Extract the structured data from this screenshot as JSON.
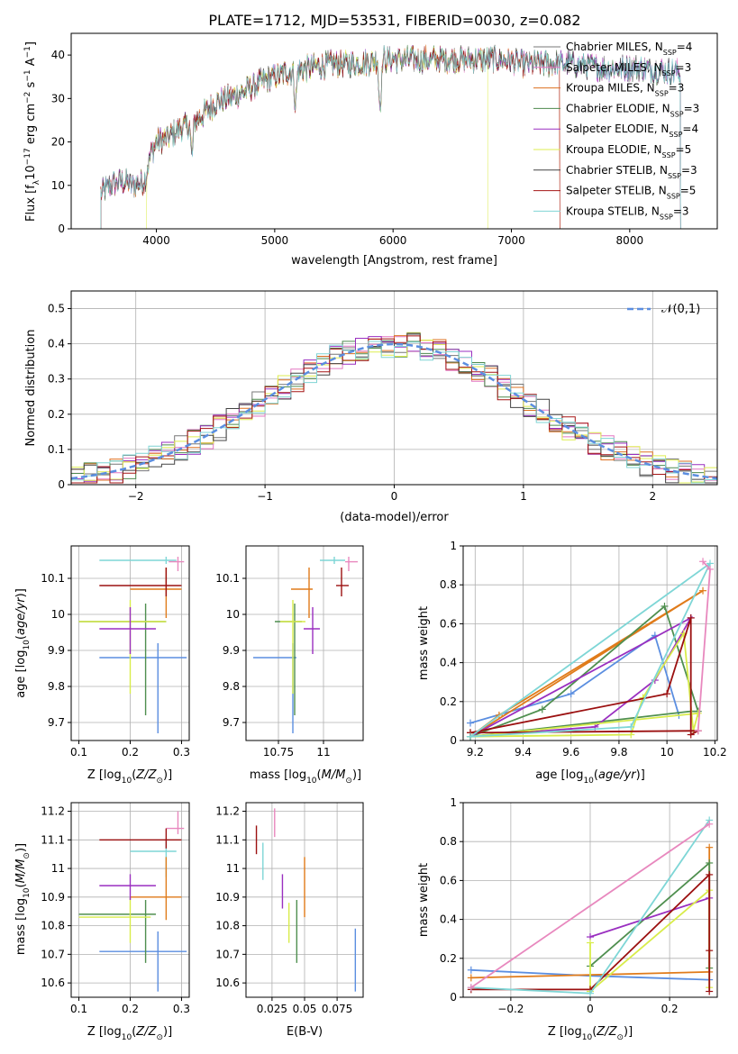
{
  "figure": {
    "title": "PLATE=1712, MJD=53531, FIBERID=0030, z=0.082"
  },
  "colors": {
    "series": [
      "#777777",
      "#e377c2",
      "#dd7020",
      "#4e8a4e",
      "#9a2fc0",
      "#dded50",
      "#444444",
      "#a51515",
      "#7fd4d4"
    ],
    "blue": "#5b8ee0",
    "pink": "#e888be",
    "orange": "#e07b1a",
    "green": "#4f8f4f",
    "purple": "#9a2fc0",
    "yellow": "#d8ec4a",
    "darkred": "#9b1010",
    "cyan": "#7ed6d6",
    "grid": "#b0b0b0"
  },
  "chart_data": [
    {
      "id": "spectrum",
      "type": "line",
      "xlabel": "wavelength [Angstrom, rest frame]",
      "ylabel": "Flux [f_λ10^{-17} erg cm^{-2} s^{-1} A^{-1}]",
      "xlim": [
        3280,
        8740
      ],
      "ylim": [
        0,
        45
      ],
      "xticks": [
        4000,
        5000,
        6000,
        7000,
        8000
      ],
      "yticks": [
        0,
        10,
        20,
        30,
        40
      ],
      "grid": false,
      "legend_position": "right",
      "legend": [
        {
          "text": "Chabrier MILES, N",
          "sub": "SSP",
          "val": "=4"
        },
        {
          "text": "Salpeter MILES, N",
          "sub": "SSP",
          "val": "=3"
        },
        {
          "text": "Kroupa MILES, N",
          "sub": "SSP",
          "val": "=3"
        },
        {
          "text": "Chabrier ELODIE, N",
          "sub": "SSP",
          "val": "=3"
        },
        {
          "text": "Salpeter ELODIE, N",
          "sub": "SSP",
          "val": "=4"
        },
        {
          "text": "Kroupa ELODIE, N",
          "sub": "SSP",
          "val": "=5"
        },
        {
          "text": "Chabrier STELIB, N",
          "sub": "SSP",
          "val": "=3"
        },
        {
          "text": "Salpeter STELIB, N",
          "sub": "SSP",
          "val": "=5"
        },
        {
          "text": "Kroupa STELIB, N",
          "sub": "SSP",
          "val": "=3"
        }
      ],
      "continuum": {
        "x": [
          3530,
          3600,
          3700,
          3800,
          3900,
          3950,
          4000,
          4100,
          4200,
          4300,
          4500,
          4700,
          4900,
          5100,
          5300,
          5500,
          5700,
          5900,
          6100,
          6300,
          6500,
          6700,
          6900,
          7100,
          7300,
          7500,
          7800,
          8100,
          8400
        ],
        "y": [
          8,
          10,
          11,
          10,
          11,
          17,
          20,
          21,
          23,
          24,
          29,
          31,
          34,
          36,
          37,
          38,
          38,
          39,
          39,
          39,
          39,
          39,
          39,
          38,
          38,
          38,
          37,
          37,
          36
        ]
      },
      "features": [
        {
          "x": 4300,
          "y": 16
        },
        {
          "x": 5175,
          "y": 28
        },
        {
          "x": 5890,
          "y": 28
        }
      ],
      "cutoffs": [
        {
          "series": 5,
          "start": 3915,
          "end": 6800
        },
        {
          "series": 2,
          "start": 3530,
          "end": 7410
        },
        {
          "series": 7,
          "start": 3530,
          "end": 7410
        }
      ]
    },
    {
      "id": "residuals",
      "type": "histogram",
      "xlabel": "(data-model)/error",
      "ylabel": "Normed distribution",
      "xlim": [
        -2.5,
        2.5
      ],
      "ylim": [
        0,
        0.55
      ],
      "xticks": [
        -2,
        -1,
        0,
        1,
        2
      ],
      "yticks": [
        0.0,
        0.1,
        0.2,
        0.3,
        0.4,
        0.5
      ],
      "grid": true,
      "bin_width": 0.1,
      "legend": [
        "𝒩(0,1)"
      ],
      "legend_position": "top-right",
      "reference_curve": {
        "name": "𝒩(0,1)",
        "mean": 0,
        "sigma": 1
      }
    },
    {
      "id": "age_vs_Z",
      "type": "errorbar",
      "xlabel": "Z [log10(Z/Z⊙)]",
      "ylabel": "age [log10(age/yr)]",
      "xlim": [
        0.085,
        0.315
      ],
      "ylim": [
        9.65,
        10.19
      ],
      "xticks": [
        0.1,
        0.2,
        0.3
      ],
      "yticks": [
        9.7,
        9.8,
        9.9,
        10.0,
        10.1
      ],
      "grid": true,
      "points": [
        {
          "c": "blue",
          "x": 0.254,
          "xl": 0.14,
          "xh": 0.31,
          "y": 9.88,
          "yl": 9.67,
          "yh": 9.92
        },
        {
          "c": "cyan",
          "x": 0.27,
          "xl": 0.14,
          "xh": 0.29,
          "y": 10.15,
          "yl": 10.14,
          "yh": 10.16
        },
        {
          "c": "pink",
          "x": 0.293,
          "xl": 0.275,
          "xh": 0.305,
          "y": 10.146,
          "yl": 10.12,
          "yh": 10.16
        },
        {
          "c": "orange",
          "x": 0.27,
          "xl": 0.2,
          "xh": 0.3,
          "y": 10.07,
          "yl": 9.99,
          "yh": 10.13
        },
        {
          "c": "darkred",
          "x": 0.27,
          "xl": 0.14,
          "xh": 0.3,
          "y": 10.08,
          "yl": 10.05,
          "yh": 10.13
        },
        {
          "c": "green",
          "x": 0.23,
          "xl": 0.1,
          "xh": 0.27,
          "y": 9.98,
          "yl": 9.72,
          "yh": 10.03
        },
        {
          "c": "yellow",
          "x": 0.2,
          "xl": 0.1,
          "xh": 0.27,
          "y": 9.98,
          "yl": 9.78,
          "yh": 10.04
        },
        {
          "c": "purple",
          "x": 0.2,
          "xl": 0.14,
          "xh": 0.25,
          "y": 9.96,
          "yl": 9.89,
          "yh": 10.02
        }
      ]
    },
    {
      "id": "age_vs_mass",
      "type": "errorbar",
      "xlabel": "mass [log10(M/M⊙)]",
      "ylabel": "",
      "xlim": [
        10.57,
        11.22
      ],
      "ylim": [
        9.65,
        10.19
      ],
      "xticks": [
        10.75,
        11.0
      ],
      "yticks": [
        9.7,
        9.8,
        9.9,
        10.0,
        10.1
      ],
      "grid": true,
      "points": [
        {
          "c": "blue",
          "x": 10.83,
          "xl": 10.61,
          "xh": 10.85,
          "y": 9.88,
          "yl": 9.67,
          "yh": 9.92
        },
        {
          "c": "cyan",
          "x": 11.06,
          "xl": 10.98,
          "xh": 11.12,
          "y": 10.15,
          "yl": 10.14,
          "yh": 10.16
        },
        {
          "c": "pink",
          "x": 11.14,
          "xl": 11.12,
          "xh": 11.19,
          "y": 10.146,
          "yl": 10.12,
          "yh": 10.16
        },
        {
          "c": "orange",
          "x": 10.92,
          "xl": 10.82,
          "xh": 10.94,
          "y": 10.07,
          "yl": 9.99,
          "yh": 10.13
        },
        {
          "c": "darkred",
          "x": 11.1,
          "xl": 11.07,
          "xh": 11.14,
          "y": 10.08,
          "yl": 10.05,
          "yh": 10.13
        },
        {
          "c": "green",
          "x": 10.84,
          "xl": 10.73,
          "xh": 10.88,
          "y": 9.98,
          "yl": 9.72,
          "yh": 10.03
        },
        {
          "c": "yellow",
          "x": 10.83,
          "xl": 10.76,
          "xh": 10.9,
          "y": 9.98,
          "yl": 9.78,
          "yh": 10.04
        },
        {
          "c": "purple",
          "x": 10.94,
          "xl": 10.89,
          "xh": 10.98,
          "y": 9.96,
          "yl": 9.89,
          "yh": 10.02
        }
      ]
    },
    {
      "id": "weight_vs_age",
      "type": "line",
      "xlabel": "age [log10(age/yr)]",
      "ylabel": "mass weight",
      "xlim": [
        9.15,
        10.21
      ],
      "ylim": [
        0,
        1
      ],
      "xticks": [
        9.2,
        9.4,
        9.6,
        9.8,
        10.0,
        10.2
      ],
      "yticks": [
        0.0,
        0.2,
        0.4,
        0.6,
        0.8,
        1.0
      ],
      "grid": true,
      "series": [
        {
          "c": "blue",
          "x": [
            9.18,
            9.6,
            9.95,
            10.05
          ],
          "y": [
            0.09,
            0.24,
            0.54,
            0.13
          ]
        },
        {
          "c": "orange",
          "x": [
            9.18,
            9.3,
            10.15,
            9.18
          ],
          "y": [
            0.02,
            0.13,
            0.77,
            0.02
          ]
        },
        {
          "c": "green",
          "x": [
            9.18,
            9.48,
            9.99,
            10.13,
            10.1,
            9.18
          ],
          "y": [
            0.02,
            0.16,
            0.69,
            0.15,
            0.15,
            0.02
          ]
        },
        {
          "c": "purple",
          "x": [
            9.18,
            9.7,
            9.95,
            10.1,
            9.18
          ],
          "y": [
            0.02,
            0.07,
            0.31,
            0.63,
            0.02
          ]
        },
        {
          "c": "yellow",
          "x": [
            9.18,
            9.85,
            9.9,
            10.07,
            10.11,
            10.13,
            9.18
          ],
          "y": [
            0.02,
            0.03,
            0.22,
            0.55,
            0.05,
            0.14,
            0.02
          ]
        },
        {
          "c": "darkred",
          "x": [
            9.18,
            10.0,
            10.1,
            10.1,
            10.13,
            9.18
          ],
          "y": [
            0.04,
            0.24,
            0.63,
            0.03,
            0.05,
            0.04
          ]
        },
        {
          "c": "cyan",
          "x": [
            9.18,
            9.85,
            10.18,
            9.18
          ],
          "y": [
            0.02,
            0.07,
            0.91,
            0.02
          ]
        },
        {
          "c": "pink",
          "x": [
            10.13,
            10.18,
            10.15
          ],
          "y": [
            0.05,
            0.88,
            0.92
          ]
        }
      ]
    },
    {
      "id": "mass_vs_Z",
      "type": "errorbar",
      "xlabel": "Z [log10(Z/Z⊙)]",
      "ylabel": "mass [log10(M/M⊙)]",
      "xlim": [
        0.085,
        0.315
      ],
      "ylim": [
        10.55,
        11.23
      ],
      "xticks": [
        0.1,
        0.2,
        0.3
      ],
      "yticks": [
        10.6,
        10.7,
        10.8,
        10.9,
        11.0,
        11.1,
        11.2
      ],
      "grid": true,
      "points": [
        {
          "c": "blue",
          "x": 0.254,
          "xl": 0.14,
          "xh": 0.31,
          "y": 10.71,
          "yl": 10.57,
          "yh": 10.78
        },
        {
          "c": "cyan",
          "x": 0.27,
          "xl": 0.2,
          "xh": 0.29,
          "y": 11.06,
          "yl": 10.97,
          "yh": 11.1
        },
        {
          "c": "pink",
          "x": 0.293,
          "xl": 0.27,
          "xh": 0.305,
          "y": 11.14,
          "yl": 11.12,
          "yh": 11.2
        },
        {
          "c": "orange",
          "x": 0.27,
          "xl": 0.2,
          "xh": 0.3,
          "y": 10.9,
          "yl": 10.82,
          "yh": 11.04
        },
        {
          "c": "darkred",
          "x": 0.27,
          "xl": 0.14,
          "xh": 0.3,
          "y": 11.1,
          "yl": 11.07,
          "yh": 11.14
        },
        {
          "c": "green",
          "x": 0.23,
          "xl": 0.1,
          "xh": 0.25,
          "y": 10.84,
          "yl": 10.67,
          "yh": 10.89
        },
        {
          "c": "yellow",
          "x": 0.2,
          "xl": 0.1,
          "xh": 0.24,
          "y": 10.83,
          "yl": 10.74,
          "yh": 10.9
        },
        {
          "c": "purple",
          "x": 0.2,
          "xl": 0.14,
          "xh": 0.25,
          "y": 10.94,
          "yl": 10.89,
          "yh": 10.98
        }
      ]
    },
    {
      "id": "mass_vs_EBV",
      "type": "errorbar",
      "xlabel": "E(B-V)",
      "ylabel": "",
      "xlim": [
        0.005,
        0.095
      ],
      "ylim": [
        10.55,
        11.23
      ],
      "xticks": [
        0.025,
        0.05,
        0.075
      ],
      "yticks": [
        10.6,
        10.7,
        10.8,
        10.9,
        11.0,
        11.1,
        11.2
      ],
      "grid": true,
      "points": [
        {
          "c": "blue",
          "x": 0.089,
          "y": 10.71,
          "yl": 10.57,
          "yh": 10.79
        },
        {
          "c": "darkred",
          "x": 0.013,
          "y": 11.1,
          "yl": 11.05,
          "yh": 11.15
        },
        {
          "c": "cyan",
          "x": 0.018,
          "y": 11.03,
          "yl": 10.96,
          "yh": 11.09
        },
        {
          "c": "pink",
          "x": 0.027,
          "y": 11.15,
          "yl": 11.11,
          "yh": 11.21
        },
        {
          "c": "purple",
          "x": 0.033,
          "y": 10.94,
          "yl": 10.86,
          "yh": 10.98
        },
        {
          "c": "yellow",
          "x": 0.038,
          "y": 10.83,
          "yl": 10.74,
          "yh": 10.88
        },
        {
          "c": "green",
          "x": 0.044,
          "y": 10.8,
          "yl": 10.67,
          "yh": 10.89
        },
        {
          "c": "orange",
          "x": 0.05,
          "y": 10.94,
          "yl": 10.83,
          "yh": 11.04
        }
      ]
    },
    {
      "id": "weight_vs_Z",
      "type": "line",
      "xlabel": "Z [log10(Z/Z⊙)]",
      "ylabel": "mass weight",
      "xlim": [
        -0.32,
        0.32
      ],
      "ylim": [
        0,
        1
      ],
      "xticks": [
        -0.2,
        0.0,
        0.2
      ],
      "yticks": [
        0.0,
        0.2,
        0.4,
        0.6,
        0.8,
        1.0
      ],
      "grid": true,
      "series": [
        {
          "c": "blue",
          "x": [
            -0.3,
            0.0,
            0.3
          ],
          "y": [
            0.14,
            0.11,
            0.09
          ]
        },
        {
          "c": "orange",
          "x": [
            -0.3,
            0.3,
            0.3
          ],
          "y": [
            0.1,
            0.13,
            0.77
          ]
        },
        {
          "c": "green",
          "x": [
            0.0,
            0.3,
            0.3
          ],
          "y": [
            0.16,
            0.69,
            0.15
          ]
        },
        {
          "c": "purple",
          "x": [
            0.0,
            0.3
          ],
          "y": [
            0.31,
            0.51
          ]
        },
        {
          "c": "yellow",
          "x": [
            0.0,
            0.0,
            0.3,
            0.3
          ],
          "y": [
            0.28,
            0.03,
            0.55,
            0.05
          ]
        },
        {
          "c": "darkred",
          "x": [
            -0.3,
            0.0,
            0.3,
            0.3,
            0.3
          ],
          "y": [
            0.04,
            0.04,
            0.63,
            0.24,
            0.03
          ]
        },
        {
          "c": "cyan",
          "x": [
            -0.3,
            0.0,
            0.3
          ],
          "y": [
            0.05,
            0.02,
            0.91
          ]
        },
        {
          "c": "pink",
          "x": [
            -0.3,
            0.3
          ],
          "y": [
            0.05,
            0.89
          ]
        }
      ]
    }
  ]
}
